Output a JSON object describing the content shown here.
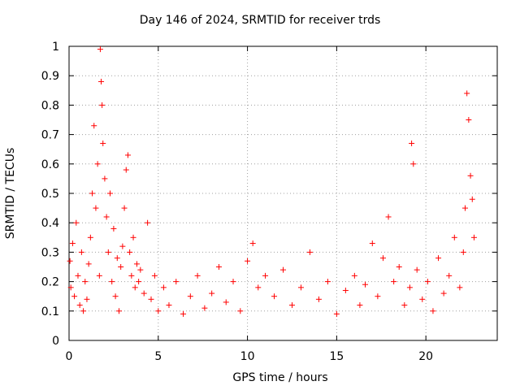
{
  "chart_data": {
    "type": "scatter",
    "title": "Day 146 of 2024, SRMTID for receiver trds",
    "xlabel": "GPS time / hours",
    "ylabel": "SRMTID / TECUs",
    "xlim": [
      0,
      24
    ],
    "ylim": [
      0,
      1
    ],
    "xticks": [
      0,
      5,
      10,
      15,
      20
    ],
    "yticks": [
      0,
      0.1,
      0.2,
      0.3,
      0.4,
      0.5,
      0.6,
      0.7,
      0.8,
      0.9,
      1
    ],
    "grid": true,
    "marker": "+",
    "color": "#ff0000",
    "series": [
      {
        "name": "SRMTID",
        "x": [
          0.05,
          0.1,
          0.2,
          0.3,
          0.4,
          0.5,
          0.6,
          0.7,
          0.8,
          0.9,
          1.0,
          1.1,
          1.2,
          1.3,
          1.4,
          1.5,
          1.6,
          1.7,
          1.75,
          1.8,
          1.85,
          1.9,
          2.0,
          2.1,
          2.2,
          2.3,
          2.4,
          2.5,
          2.6,
          2.7,
          2.8,
          2.9,
          3.0,
          3.1,
          3.2,
          3.3,
          3.4,
          3.5,
          3.6,
          3.7,
          3.8,
          3.9,
          4.0,
          4.2,
          4.4,
          4.6,
          4.8,
          5.0,
          5.3,
          5.6,
          6.0,
          6.4,
          6.8,
          7.2,
          7.6,
          8.0,
          8.4,
          8.8,
          9.2,
          9.6,
          10.0,
          10.3,
          10.6,
          11.0,
          11.5,
          12.0,
          12.5,
          13.0,
          13.5,
          14.0,
          14.5,
          15.0,
          15.5,
          16.0,
          16.3,
          16.6,
          17.0,
          17.3,
          17.6,
          17.9,
          18.2,
          18.5,
          18.8,
          19.1,
          19.2,
          19.3,
          19.5,
          19.8,
          20.1,
          20.4,
          20.7,
          21.0,
          21.3,
          21.6,
          21.9,
          22.1,
          22.2,
          22.3,
          22.4,
          22.5,
          22.6,
          22.7
        ],
        "y": [
          0.27,
          0.18,
          0.33,
          0.15,
          0.4,
          0.22,
          0.12,
          0.3,
          0.1,
          0.2,
          0.14,
          0.26,
          0.35,
          0.5,
          0.73,
          0.45,
          0.6,
          0.22,
          0.99,
          0.88,
          0.8,
          0.67,
          0.55,
          0.42,
          0.3,
          0.5,
          0.2,
          0.38,
          0.15,
          0.28,
          0.1,
          0.25,
          0.32,
          0.45,
          0.58,
          0.63,
          0.3,
          0.22,
          0.35,
          0.18,
          0.26,
          0.2,
          0.24,
          0.16,
          0.4,
          0.14,
          0.22,
          0.1,
          0.18,
          0.12,
          0.2,
          0.09,
          0.15,
          0.22,
          0.11,
          0.16,
          0.25,
          0.13,
          0.2,
          0.1,
          0.27,
          0.33,
          0.18,
          0.22,
          0.15,
          0.24,
          0.12,
          0.18,
          0.3,
          0.14,
          0.2,
          0.09,
          0.17,
          0.22,
          0.12,
          0.19,
          0.33,
          0.15,
          0.28,
          0.42,
          0.2,
          0.25,
          0.12,
          0.18,
          0.67,
          0.6,
          0.24,
          0.14,
          0.2,
          0.1,
          0.28,
          0.16,
          0.22,
          0.35,
          0.18,
          0.3,
          0.45,
          0.84,
          0.75,
          0.56,
          0.48,
          0.35
        ]
      }
    ]
  }
}
